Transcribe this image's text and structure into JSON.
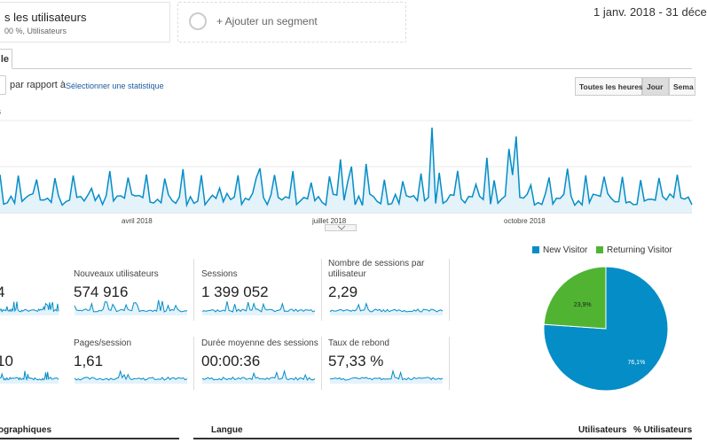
{
  "segments": {
    "all_users_title": "s les utilisateurs",
    "all_users_sub": "00 %, Utilisateurs",
    "add_segment": "+ Ajouter un segment"
  },
  "date_range": "1 janv. 2018 - 31 déce",
  "tab_label": "le",
  "controls": {
    "vs_label": "par rapport à",
    "select_stat": "Sélectionner une statistique",
    "time_buttons": [
      "Toutes les heures",
      "Jour",
      "Sema"
    ],
    "active_time_button": "Jour"
  },
  "chart": {
    "ylabel_fragment": "s",
    "x_tick_labels": [
      "avril 2018",
      "juillet 2018",
      "octobre 2018"
    ]
  },
  "metrics": {
    "row1": [
      {
        "label": "",
        "value": "4"
      },
      {
        "label": "Nouveaux utilisateurs",
        "value": "574 916"
      },
      {
        "label": "Sessions",
        "value": "1 399 052"
      },
      {
        "label": "Nombre de sessions par utilisateur",
        "value": "2,29"
      }
    ],
    "row2": [
      {
        "label": "",
        "value": "10"
      },
      {
        "label": "Pages/session",
        "value": "1,61"
      },
      {
        "label": "Durée moyenne des sessions",
        "value": "00:00:36"
      },
      {
        "label": "Taux de rebond",
        "value": "57,33 %"
      }
    ]
  },
  "chart_data": {
    "type": "pie",
    "labels": [
      "New Visitor",
      "Returning Visitor"
    ],
    "values": [
      76.1,
      23.9
    ],
    "value_labels": [
      "76,1%",
      "23,9%"
    ],
    "colors": [
      "#058dc7",
      "#50b432"
    ],
    "legend_position": "top"
  },
  "colors": {
    "line": "#058dc7",
    "area": "#e4f2fa",
    "link": "#1a5a9e"
  },
  "bottom_table": {
    "col1_header": "ographiques",
    "col2_header": "Langue",
    "col3_header": "Utilisateurs",
    "col4_header": "% Utilisateurs"
  }
}
